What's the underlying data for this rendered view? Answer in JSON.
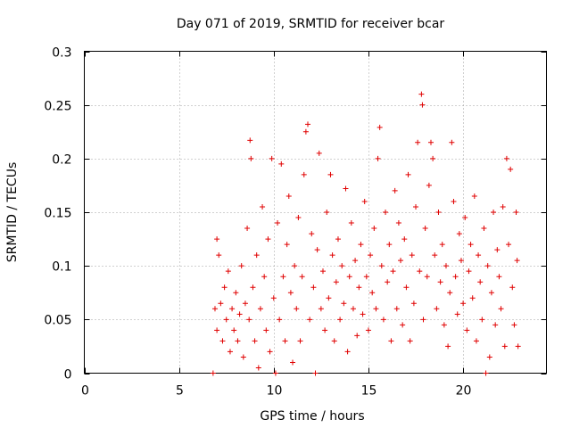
{
  "chart_data": {
    "type": "scatter",
    "title": "Day 071 of 2019, SRMTID for receiver bcar",
    "xlabel": "GPS time / hours",
    "ylabel": "SRMTID / TECUs",
    "xlim": [
      0,
      24.4
    ],
    "ylim": [
      0,
      0.3
    ],
    "x_ticks": [
      "0",
      "5",
      "10",
      "15",
      "20"
    ],
    "x_tick_values": [
      0,
      5,
      10,
      15,
      20
    ],
    "y_ticks": [
      "0",
      "0.05",
      "0.1",
      "0.15",
      "0.2",
      "0.25",
      "0.3"
    ],
    "y_tick_values": [
      0,
      0.05,
      0.1,
      0.15,
      0.2,
      0.25,
      0.3
    ],
    "grid": true,
    "marker": "+",
    "color": "#e00000",
    "series": [
      {
        "name": "SRMTID",
        "points": [
          [
            6.8,
            0.0
          ],
          [
            6.9,
            0.06
          ],
          [
            7.0,
            0.125
          ],
          [
            7.0,
            0.04
          ],
          [
            7.1,
            0.11
          ],
          [
            7.2,
            0.065
          ],
          [
            7.3,
            0.03
          ],
          [
            7.4,
            0.08
          ],
          [
            7.5,
            0.05
          ],
          [
            7.6,
            0.095
          ],
          [
            7.7,
            0.02
          ],
          [
            7.8,
            0.06
          ],
          [
            7.9,
            0.04
          ],
          [
            8.0,
            0.075
          ],
          [
            8.1,
            0.03
          ],
          [
            8.2,
            0.055
          ],
          [
            8.3,
            0.1
          ],
          [
            8.4,
            0.015
          ],
          [
            8.5,
            0.065
          ],
          [
            8.6,
            0.135
          ],
          [
            8.7,
            0.05
          ],
          [
            8.75,
            0.217
          ],
          [
            8.8,
            0.2
          ],
          [
            8.9,
            0.08
          ],
          [
            9.0,
            0.03
          ],
          [
            9.1,
            0.11
          ],
          [
            9.2,
            0.005
          ],
          [
            9.3,
            0.06
          ],
          [
            9.4,
            0.155
          ],
          [
            9.5,
            0.09
          ],
          [
            9.6,
            0.04
          ],
          [
            9.7,
            0.125
          ],
          [
            9.8,
            0.02
          ],
          [
            9.9,
            0.2
          ],
          [
            10.0,
            0.07
          ],
          [
            10.1,
            0.0
          ],
          [
            10.2,
            0.14
          ],
          [
            10.3,
            0.05
          ],
          [
            10.4,
            0.195
          ],
          [
            10.5,
            0.09
          ],
          [
            10.6,
            0.03
          ],
          [
            10.7,
            0.12
          ],
          [
            10.8,
            0.165
          ],
          [
            10.9,
            0.075
          ],
          [
            11.0,
            0.01
          ],
          [
            11.1,
            0.1
          ],
          [
            11.2,
            0.06
          ],
          [
            11.3,
            0.145
          ],
          [
            11.4,
            0.03
          ],
          [
            11.5,
            0.09
          ],
          [
            11.6,
            0.185
          ],
          [
            11.7,
            0.225
          ],
          [
            11.8,
            0.232
          ],
          [
            11.9,
            0.05
          ],
          [
            12.0,
            0.13
          ],
          [
            12.1,
            0.08
          ],
          [
            12.2,
            0.0
          ],
          [
            12.3,
            0.115
          ],
          [
            12.4,
            0.205
          ],
          [
            12.5,
            0.06
          ],
          [
            12.6,
            0.095
          ],
          [
            12.7,
            0.04
          ],
          [
            12.8,
            0.15
          ],
          [
            12.9,
            0.07
          ],
          [
            13.0,
            0.185
          ],
          [
            13.1,
            0.11
          ],
          [
            13.2,
            0.03
          ],
          [
            13.3,
            0.085
          ],
          [
            13.4,
            0.125
          ],
          [
            13.5,
            0.05
          ],
          [
            13.6,
            0.1
          ],
          [
            13.7,
            0.065
          ],
          [
            13.8,
            0.172
          ],
          [
            13.9,
            0.02
          ],
          [
            14.0,
            0.09
          ],
          [
            14.1,
            0.14
          ],
          [
            14.2,
            0.06
          ],
          [
            14.3,
            0.105
          ],
          [
            14.4,
            0.035
          ],
          [
            14.5,
            0.08
          ],
          [
            14.6,
            0.12
          ],
          [
            14.7,
            0.055
          ],
          [
            14.8,
            0.16
          ],
          [
            14.9,
            0.09
          ],
          [
            15.0,
            0.04
          ],
          [
            15.1,
            0.11
          ],
          [
            15.2,
            0.075
          ],
          [
            15.3,
            0.135
          ],
          [
            15.4,
            0.06
          ],
          [
            15.5,
            0.2
          ],
          [
            15.6,
            0.229
          ],
          [
            15.7,
            0.1
          ],
          [
            15.8,
            0.05
          ],
          [
            15.9,
            0.15
          ],
          [
            16.0,
            0.085
          ],
          [
            16.1,
            0.12
          ],
          [
            16.2,
            0.03
          ],
          [
            16.3,
            0.095
          ],
          [
            16.4,
            0.17
          ],
          [
            16.5,
            0.06
          ],
          [
            16.6,
            0.14
          ],
          [
            16.7,
            0.105
          ],
          [
            16.8,
            0.045
          ],
          [
            16.9,
            0.125
          ],
          [
            17.0,
            0.08
          ],
          [
            17.1,
            0.185
          ],
          [
            17.2,
            0.03
          ],
          [
            17.3,
            0.11
          ],
          [
            17.4,
            0.065
          ],
          [
            17.5,
            0.155
          ],
          [
            17.6,
            0.215
          ],
          [
            17.7,
            0.095
          ],
          [
            17.8,
            0.26
          ],
          [
            17.85,
            0.25
          ],
          [
            17.9,
            0.05
          ],
          [
            18.0,
            0.135
          ],
          [
            18.1,
            0.09
          ],
          [
            18.2,
            0.175
          ],
          [
            18.3,
            0.215
          ],
          [
            18.4,
            0.2
          ],
          [
            18.5,
            0.11
          ],
          [
            18.6,
            0.06
          ],
          [
            18.7,
            0.15
          ],
          [
            18.8,
            0.085
          ],
          [
            18.9,
            0.12
          ],
          [
            19.0,
            0.045
          ],
          [
            19.1,
            0.1
          ],
          [
            19.2,
            0.025
          ],
          [
            19.3,
            0.075
          ],
          [
            19.4,
            0.215
          ],
          [
            19.5,
            0.16
          ],
          [
            19.6,
            0.09
          ],
          [
            19.7,
            0.055
          ],
          [
            19.8,
            0.13
          ],
          [
            19.9,
            0.105
          ],
          [
            20.0,
            0.065
          ],
          [
            20.1,
            0.145
          ],
          [
            20.2,
            0.04
          ],
          [
            20.3,
            0.095
          ],
          [
            20.4,
            0.12
          ],
          [
            20.5,
            0.07
          ],
          [
            20.6,
            0.165
          ],
          [
            20.7,
            0.03
          ],
          [
            20.8,
            0.11
          ],
          [
            20.9,
            0.085
          ],
          [
            21.0,
            0.05
          ],
          [
            21.1,
            0.135
          ],
          [
            21.2,
            0.0
          ],
          [
            21.3,
            0.1
          ],
          [
            21.4,
            0.015
          ],
          [
            21.5,
            0.075
          ],
          [
            21.6,
            0.15
          ],
          [
            21.7,
            0.045
          ],
          [
            21.8,
            0.115
          ],
          [
            21.9,
            0.09
          ],
          [
            22.0,
            0.06
          ],
          [
            22.1,
            0.155
          ],
          [
            22.2,
            0.025
          ],
          [
            22.3,
            0.2
          ],
          [
            22.4,
            0.12
          ],
          [
            22.5,
            0.19
          ],
          [
            22.6,
            0.08
          ],
          [
            22.7,
            0.045
          ],
          [
            22.8,
            0.15
          ],
          [
            22.85,
            0.105
          ],
          [
            22.9,
            0.025
          ]
        ]
      }
    ]
  }
}
